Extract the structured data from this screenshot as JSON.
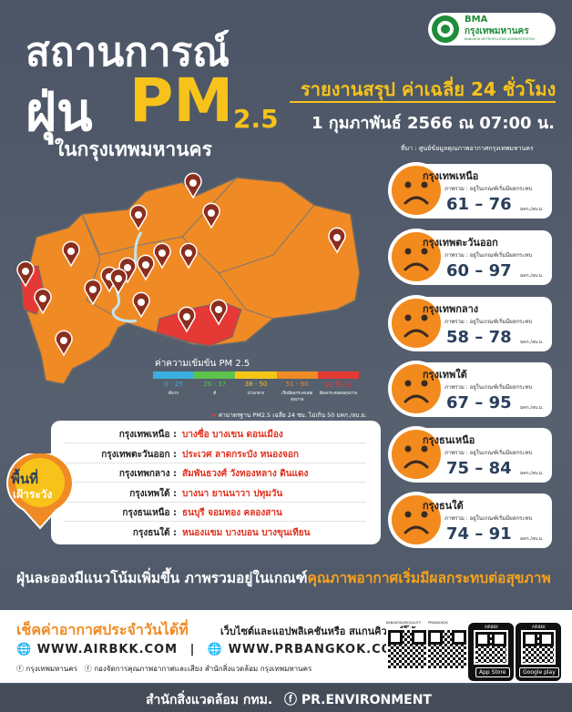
{
  "header": {
    "title_line1": "สถานการณ์",
    "title_dust": "ฝุ่น",
    "title_pm": "PM",
    "title_sub": "2.5",
    "title_city": "ในกรุงเทพมหานคร",
    "logo_abbr": "BMA",
    "logo_name": "กรุงเทพมหานคร",
    "logo_en": "BANGKOK METROPOLITAN ADMINISTRATION"
  },
  "report": {
    "title": "รายงานสรุป ค่าเฉลี่ย 24 ชั่วโมง",
    "date": "1 กุมภาพันธ์ 2566 ณ 07:00 น.",
    "source": "ที่มา : ศูนย์ข้อมูลคุณภาพอากาศกรุงเทพมหานคร"
  },
  "zones": [
    {
      "name": "กรุงเทพเหนือ",
      "status": "ภาพรวม : อยู่ในเกณฑ์เริ่มมีผลกระทบ",
      "range": "61 – 76",
      "unit": "มคก./ลบ.ม."
    },
    {
      "name": "กรุงเทพตะวันออก",
      "status": "ภาพรวม : อยู่ในเกณฑ์เริ่มมีผลกระทบ",
      "range": "60 – 97",
      "unit": "มคก./ลบ.ม."
    },
    {
      "name": "กรุงเทพกลาง",
      "status": "ภาพรวม : อยู่ในเกณฑ์เริ่มมีผลกระทบ",
      "range": "58 – 78",
      "unit": "มคก./ลบ.ม."
    },
    {
      "name": "กรุงเทพใต้",
      "status": "ภาพรวม : อยู่ในเกณฑ์เริ่มมีผลกระทบ",
      "range": "67 – 95",
      "unit": "มคก./ลบ.ม."
    },
    {
      "name": "กรุงธนเหนือ",
      "status": "ภาพรวม : อยู่ในเกณฑ์เริ่มมีผลกระทบ",
      "range": "75 – 84",
      "unit": "มคก./ลบ.ม."
    },
    {
      "name": "กรุงธนใต้",
      "status": "ภาพรวม : อยู่ในเกณฑ์เริ่มมีผลกระทบ",
      "range": "74 – 91",
      "unit": "มคก./ลบ.ม."
    }
  ],
  "legend": {
    "title": "ค่าความเข้มข้น PM 2.5",
    "items": [
      {
        "range": "0 - 25",
        "label": "ดีมาก",
        "color": "#3ab0e0"
      },
      {
        "range": "26 - 37",
        "label": "ดี",
        "color": "#5cc34d"
      },
      {
        "range": "38 - 50",
        "label": "ปานกลาง",
        "color": "#f5c518"
      },
      {
        "range": "51 - 90",
        "label": "เริ่มมีผลกระทบต่อสุขภาพ",
        "color": "#f08a24"
      },
      {
        "range": "91 ขึ้นไป",
        "label": "มีผลกระทบต่อสุขภาพ",
        "color": "#e53935"
      }
    ],
    "note": "ค่ามาตรฐาน PM2.5 เฉลี่ย 24 ชม. ไม่เกิน 50 มคก./ลบ.ม."
  },
  "watch": {
    "badge_line1": "พื้นที่",
    "badge_line2": "เฝ้าระวัง",
    "rows": [
      {
        "zone": "กรุงเทพเหนือ :",
        "districts": "บางซื่อ  บางเขน  ดอนเมือง"
      },
      {
        "zone": "กรุงเทพตะวันออก :",
        "districts": "ประเวศ  ลาดกระบัง  หนองจอก"
      },
      {
        "zone": "กรุงเทพกลาง :",
        "districts": "สัมพันธวงศ์  วังทองหลาง  ดินแดง"
      },
      {
        "zone": "กรุงเทพใต้ :",
        "districts": "บางนา  ยานนาวา  ปทุมวัน"
      },
      {
        "zone": "กรุงธนเหนือ :",
        "districts": "ธนบุรี  จอมทอง  คลองสาน"
      },
      {
        "zone": "กรุงธนใต้ :",
        "districts": "หนองแขม  บางบอน  บางขุนเทียน"
      }
    ]
  },
  "headline": {
    "part1": "ฝุ่นละอองมีแนวโน้มเพิ่มขึ้น ภาพรวมอยู่ในเกณฑ์",
    "part2": "คุณภาพอากาศเริ่มมีผลกระทบต่อสุขภาพ"
  },
  "footer": {
    "check": "เช็คค่าอากาศประจำวันได้ที่",
    "channels": "เว็บไซต์และแอปพลิเคชันหรือ สแกนคิวอาร์โค้ด",
    "site1": "WWW.AIRBKK.COM",
    "separator": "|",
    "site2": "WWW.PRBANGKOK.COM",
    "page1": "กรุงเทพมหานคร",
    "page2": "กองจัดการคุณภาพอากาศและเสียง สำนักสิ่งแวดล้อม กรุงเทพมหานคร",
    "qr1": "BANGKOKAIRQUALITY",
    "qr2": "PRBANGKOK",
    "qr3": "AIRBKK",
    "qr4": "AIRBKK",
    "store1": "App Store",
    "store2": "Google play"
  },
  "bottom": {
    "office": "สำนักสิ่งแวดล้อม กทม.",
    "fb": "PR.ENVIRONMENT"
  }
}
